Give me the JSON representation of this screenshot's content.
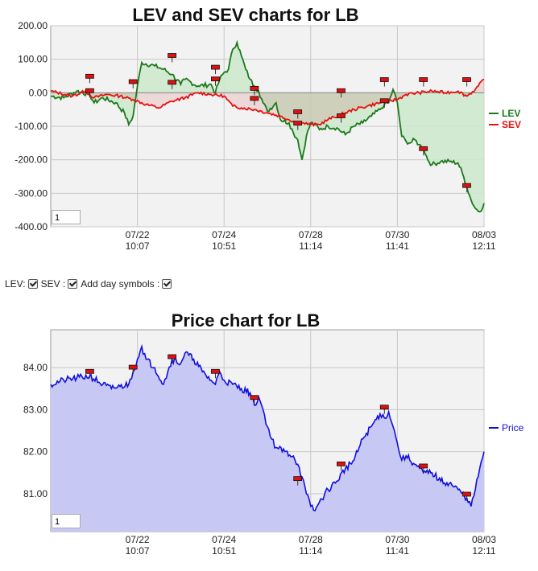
{
  "chart_data": [
    {
      "type": "line",
      "title": "LEV and SEV charts for LB",
      "xlabel": "",
      "ylabel": "",
      "ylim": [
        -400,
        200
      ],
      "y_ticks": [
        "200.00",
        "100.00",
        "0.00",
        "-100.00",
        "-200.00",
        "-300.00",
        "-400.00"
      ],
      "x_ticks": [
        {
          "date": "07/22",
          "time": "10:07"
        },
        {
          "date": "07/24",
          "time": "10:51"
        },
        {
          "date": "07/28",
          "time": "11:14"
        },
        {
          "date": "07/30",
          "time": "11:41"
        },
        {
          "date": "08/03",
          "time": "12:11"
        }
      ],
      "x_tick_index": [
        20,
        40,
        60,
        80,
        100
      ],
      "x_range": [
        0,
        100
      ],
      "grid": true,
      "legend_position": "right",
      "series": [
        {
          "name": "LEV",
          "color": "#1a7a1a",
          "x": [
            0,
            3,
            6,
            9,
            10,
            12,
            15,
            17,
            18,
            19,
            20,
            21,
            24,
            26,
            28,
            30,
            31,
            34,
            37,
            38,
            39,
            40,
            41,
            42,
            43,
            44,
            45,
            46,
            47,
            48,
            49,
            50,
            52,
            53,
            55,
            56,
            57,
            58,
            59,
            60,
            61,
            62,
            64,
            66,
            68,
            70,
            72,
            74,
            76,
            77,
            78,
            79,
            80,
            81,
            82,
            83,
            84,
            85,
            86,
            87,
            88,
            90,
            92,
            94,
            95,
            96,
            97,
            98,
            99,
            100
          ],
          "y": [
            -10,
            -15,
            5,
            -5,
            -30,
            -15,
            -30,
            -60,
            -95,
            -70,
            20,
            90,
            80,
            70,
            55,
            25,
            40,
            20,
            25,
            0,
            40,
            60,
            70,
            130,
            150,
            110,
            70,
            40,
            20,
            5,
            -30,
            -55,
            -30,
            -80,
            -90,
            -120,
            -140,
            -200,
            -130,
            -90,
            -95,
            -110,
            -100,
            -105,
            -125,
            -100,
            -90,
            -70,
            -50,
            -35,
            -30,
            10,
            -30,
            -130,
            -145,
            -150,
            -140,
            -155,
            -165,
            -200,
            -215,
            -205,
            -205,
            -210,
            -240,
            -280,
            -320,
            -345,
            -355,
            -330
          ]
        },
        {
          "name": "SEV",
          "color": "#e81010",
          "x": [
            0,
            5,
            8,
            10,
            13,
            16,
            19,
            22,
            25,
            28,
            31,
            34,
            37,
            40,
            42,
            44,
            47,
            50,
            53,
            56,
            58,
            60,
            62,
            64,
            67,
            70,
            73,
            76,
            78,
            80,
            82,
            85,
            88,
            91,
            94,
            96,
            98,
            100
          ],
          "y": [
            5,
            -10,
            5,
            -15,
            -5,
            -10,
            -20,
            -35,
            -45,
            -25,
            -15,
            0,
            -5,
            -10,
            -40,
            -45,
            -50,
            -60,
            -70,
            -85,
            -90,
            -95,
            -95,
            -80,
            -65,
            -50,
            -40,
            -30,
            -25,
            -20,
            -5,
            0,
            5,
            0,
            5,
            -10,
            10,
            40
          ]
        }
      ],
      "markers": [
        {
          "x": 9,
          "y": 48
        },
        {
          "x": 9,
          "y": 5
        },
        {
          "x": 19,
          "y": 32
        },
        {
          "x": 28,
          "y": 110
        },
        {
          "x": 28,
          "y": 30
        },
        {
          "x": 38,
          "y": 75
        },
        {
          "x": 38,
          "y": 40
        },
        {
          "x": 47,
          "y": 12
        },
        {
          "x": 47,
          "y": -18
        },
        {
          "x": 57,
          "y": -58
        },
        {
          "x": 57,
          "y": -92
        },
        {
          "x": 67,
          "y": 5
        },
        {
          "x": 67,
          "y": -70
        },
        {
          "x": 77,
          "y": 38
        },
        {
          "x": 77,
          "y": -25
        },
        {
          "x": 86,
          "y": 38
        },
        {
          "x": 86,
          "y": -168
        },
        {
          "x": 96,
          "y": 38
        },
        {
          "x": 96,
          "y": -278
        }
      ],
      "zoom_value": "1"
    },
    {
      "type": "area",
      "title": "Price chart for LB",
      "xlabel": "",
      "ylabel": "",
      "ylim": [
        80.1,
        84.9
      ],
      "y_ticks": [
        "84.00",
        "83.00",
        "82.00",
        "81.00"
      ],
      "y_tick_values": [
        84,
        83,
        82,
        81
      ],
      "x_ticks": [
        {
          "date": "07/22",
          "time": "10:07"
        },
        {
          "date": "07/24",
          "time": "10:51"
        },
        {
          "date": "07/28",
          "time": "11:14"
        },
        {
          "date": "07/30",
          "time": "11:41"
        },
        {
          "date": "08/03",
          "time": "12:11"
        }
      ],
      "x_tick_index": [
        20,
        40,
        60,
        80,
        100
      ],
      "x_range": [
        0,
        100
      ],
      "grid": true,
      "legend_position": "right",
      "series": [
        {
          "name": "Price",
          "color": "#1010dd",
          "x": [
            0,
            3,
            6,
            9,
            12,
            14,
            16,
            18,
            19,
            20,
            21,
            22,
            24,
            26,
            27,
            28,
            30,
            31,
            33,
            35,
            37,
            38,
            39,
            40,
            42,
            44,
            46,
            47,
            48,
            49,
            50,
            51,
            52,
            54,
            56,
            57,
            58,
            59,
            60,
            61,
            62,
            64,
            66,
            68,
            70,
            72,
            74,
            76,
            77,
            78,
            79,
            80,
            81,
            82,
            84,
            86,
            88,
            90,
            92,
            94,
            96,
            97,
            98,
            99,
            100
          ],
          "y": [
            83.6,
            83.7,
            83.75,
            83.8,
            83.6,
            83.5,
            83.55,
            83.6,
            83.9,
            84.2,
            84.5,
            84.2,
            84.0,
            83.6,
            83.9,
            84.2,
            84.1,
            84.35,
            84.2,
            83.9,
            83.7,
            83.6,
            83.9,
            83.7,
            83.6,
            83.5,
            83.4,
            83.1,
            83.3,
            83.0,
            82.6,
            82.3,
            82.1,
            82.0,
            81.9,
            81.7,
            81.4,
            81.0,
            80.7,
            80.6,
            80.8,
            81.1,
            81.3,
            81.6,
            81.8,
            82.3,
            82.6,
            82.9,
            82.8,
            82.95,
            82.6,
            82.2,
            81.8,
            81.9,
            81.7,
            81.5,
            81.5,
            81.3,
            81.25,
            81.1,
            80.9,
            80.7,
            81.1,
            81.6,
            82.0
          ]
        }
      ],
      "markers": [
        {
          "x": 9,
          "y": 83.9
        },
        {
          "x": 19,
          "y": 84.0
        },
        {
          "x": 28,
          "y": 84.25
        },
        {
          "x": 38,
          "y": 83.9
        },
        {
          "x": 47,
          "y": 83.28
        },
        {
          "x": 57,
          "y": 81.35
        },
        {
          "x": 67,
          "y": 81.7
        },
        {
          "x": 77,
          "y": 83.05
        },
        {
          "x": 86,
          "y": 81.65
        },
        {
          "x": 96,
          "y": 80.98
        }
      ],
      "zoom_value": "1"
    }
  ],
  "controls": {
    "lev_label": "LEV:",
    "sev_label": "SEV :",
    "day_symbols_label": "Add day symbols :"
  },
  "colors": {
    "plot_bg": "#f2f2f2",
    "grid": "#c8c8c8",
    "lev_fill": "#cde8cd",
    "sev_fill": "#f8d8d8",
    "overlap_fill": "#c8b8a4",
    "price_fill": "#c8c8f4",
    "marker": "#e01010"
  }
}
